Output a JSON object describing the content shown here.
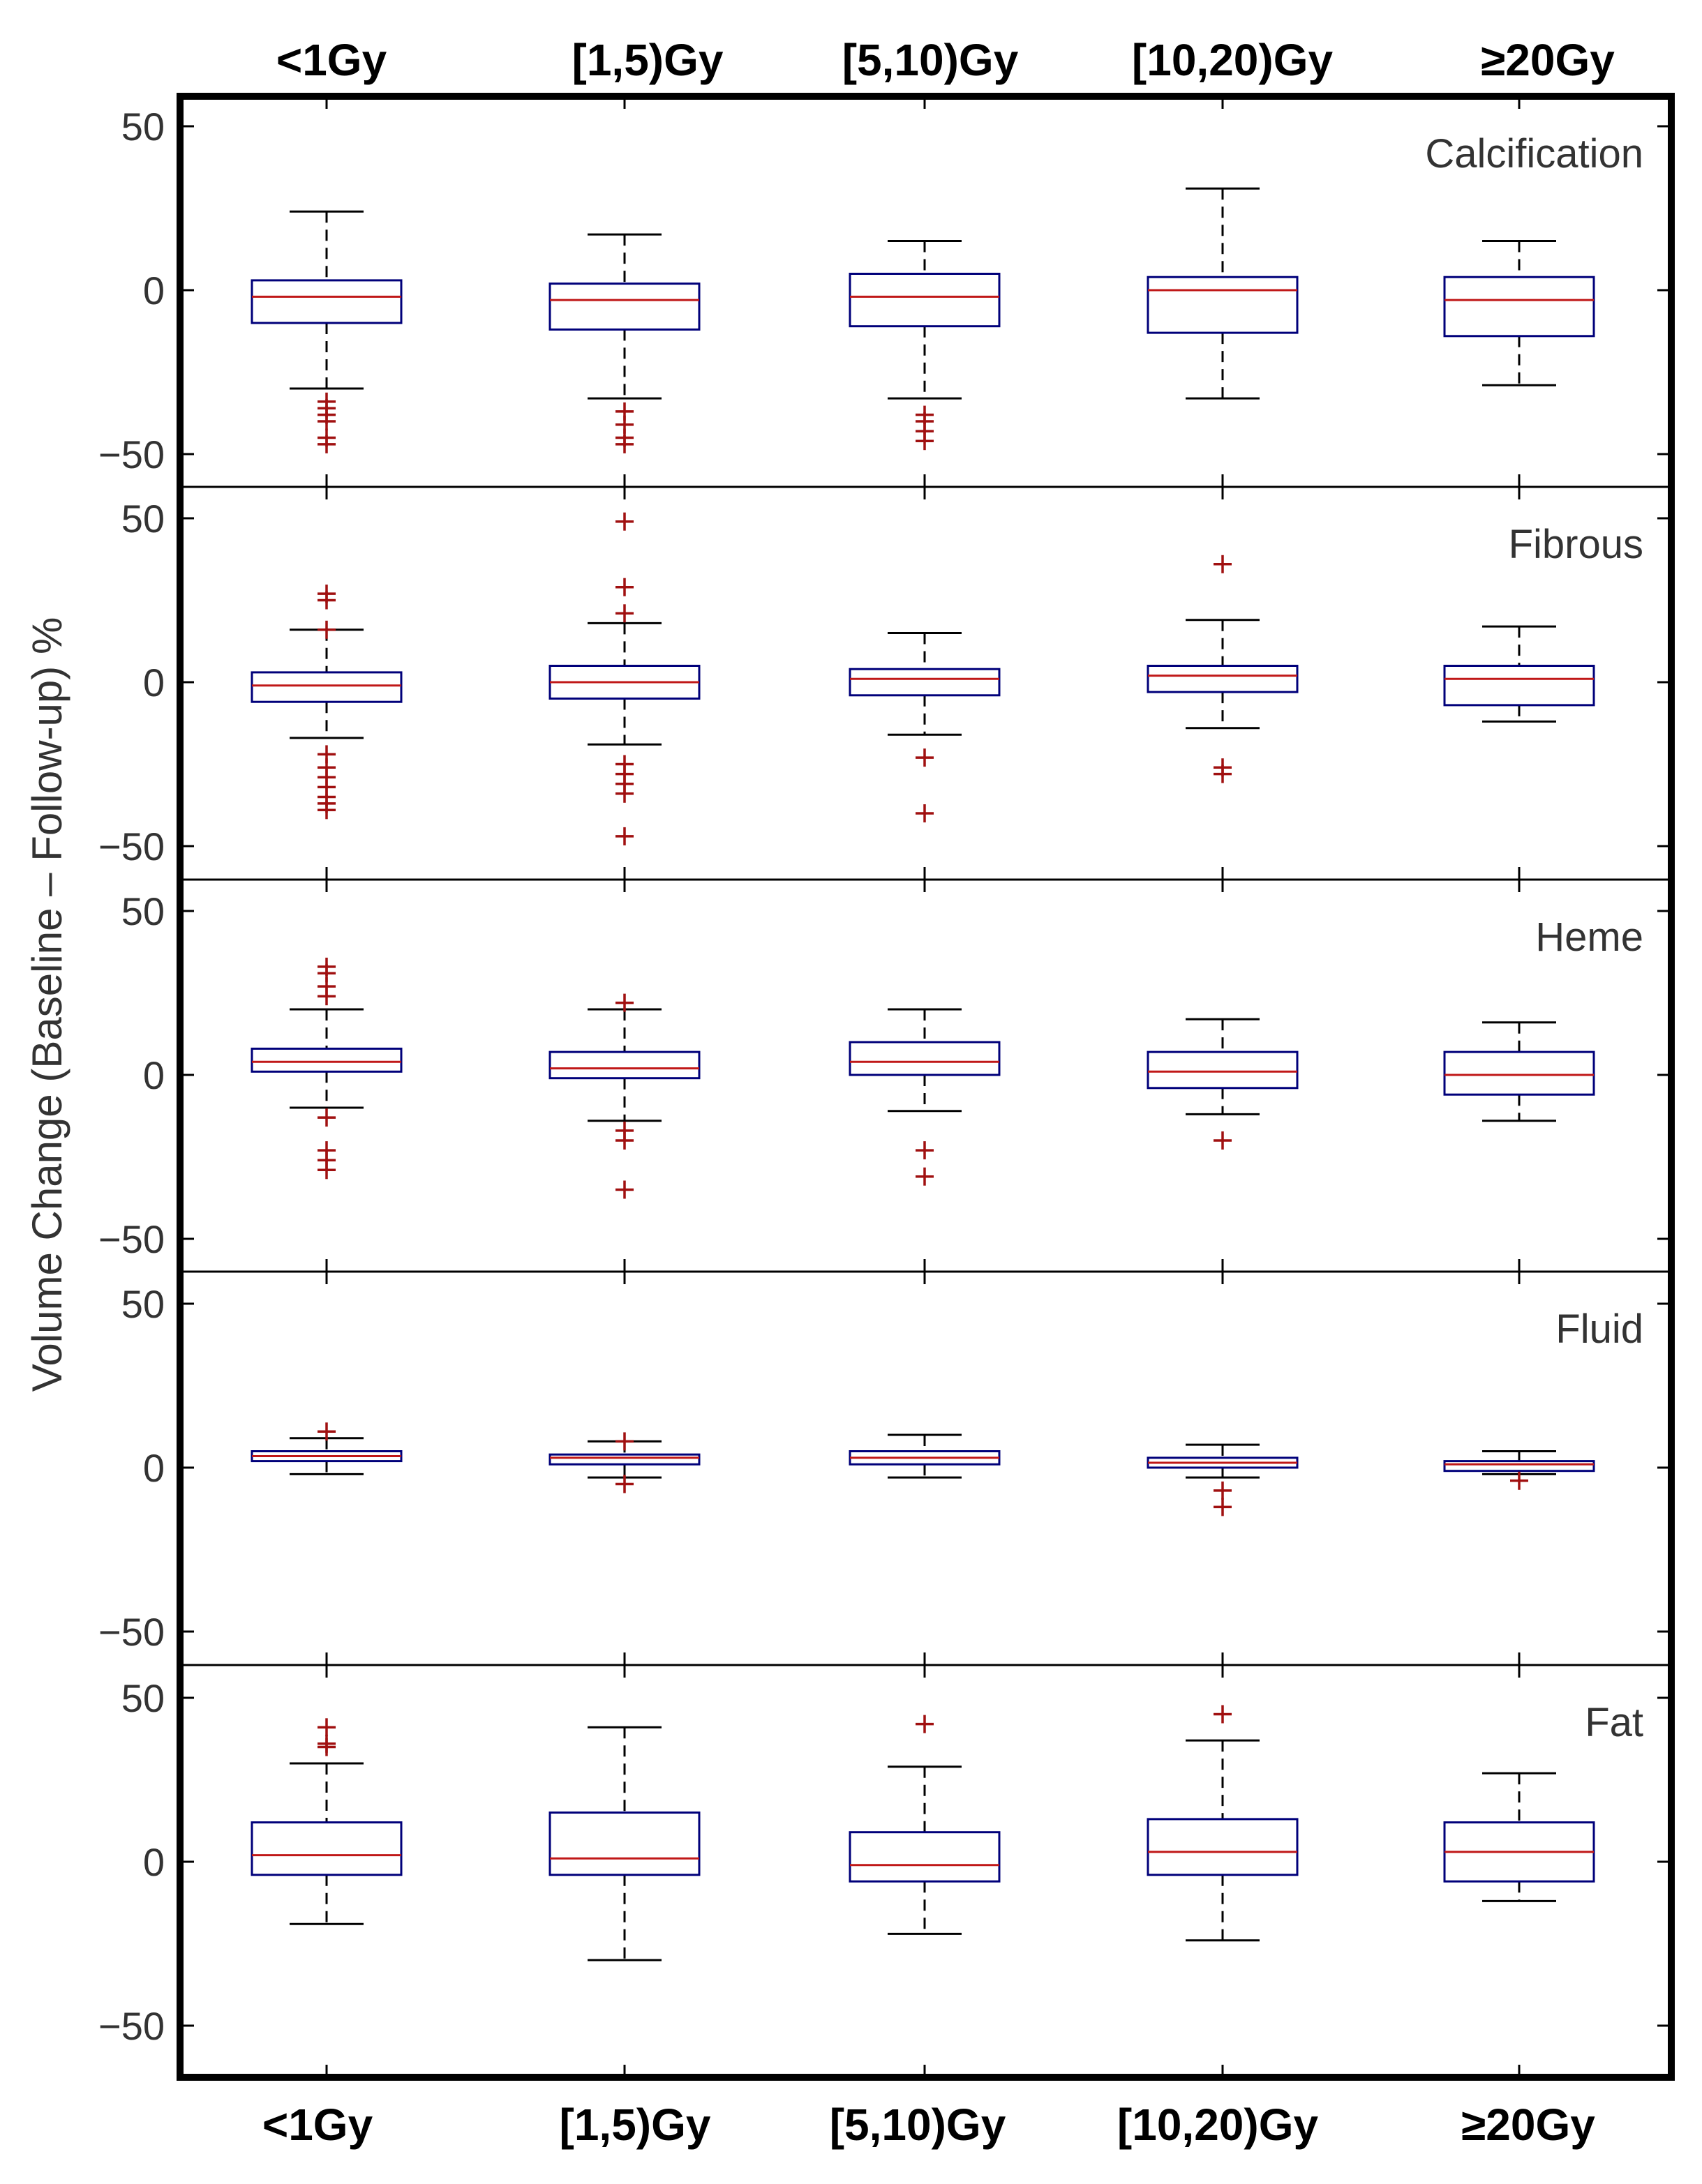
{
  "chart_data": {
    "type": "boxplot",
    "y_label": "Volume Change (Baseline – Follow-up) %",
    "categories": [
      "<1Gy",
      "[1,5)Gy",
      "[5,10)Gy",
      "[10,20)Gy",
      "≥20Gy"
    ],
    "y_range": [
      -60,
      60
    ],
    "y_ticks": [
      -50,
      0,
      50
    ],
    "y_tick_labels": [
      "−50",
      "0",
      "50"
    ],
    "panels": [
      {
        "title": "Calcification",
        "boxes": [
          {
            "q1": -10,
            "median": -2,
            "q3": 3,
            "whisker_low": -30,
            "whisker_high": 24,
            "outliers": [
              -34,
              -36,
              -38,
              -40,
              -45,
              -47
            ]
          },
          {
            "q1": -12,
            "median": -3,
            "q3": 2,
            "whisker_low": -33,
            "whisker_high": 17,
            "outliers": [
              -37,
              -41,
              -45,
              -47
            ]
          },
          {
            "q1": -11,
            "median": -2,
            "q3": 5,
            "whisker_low": -33,
            "whisker_high": 15,
            "outliers": [
              -38,
              -40,
              -43,
              -46
            ]
          },
          {
            "q1": -13,
            "median": 0,
            "q3": 4,
            "whisker_low": -33,
            "whisker_high": 31,
            "outliers": []
          },
          {
            "q1": -14,
            "median": -3,
            "q3": 4,
            "whisker_low": -29,
            "whisker_high": 15,
            "outliers": []
          }
        ]
      },
      {
        "title": "Fibrous",
        "boxes": [
          {
            "q1": -6,
            "median": -1,
            "q3": 3,
            "whisker_low": -17,
            "whisker_high": 16,
            "outliers": [
              -22,
              -26,
              -29,
              -32,
              -35,
              -37,
              -39,
              16,
              25,
              27
            ]
          },
          {
            "q1": -5,
            "median": 0,
            "q3": 5,
            "whisker_low": -19,
            "whisker_high": 18,
            "outliers": [
              -25,
              -28,
              -31,
              -34,
              -47,
              21,
              29,
              49
            ]
          },
          {
            "q1": -4,
            "median": 1,
            "q3": 4,
            "whisker_low": -16,
            "whisker_high": 15,
            "outliers": [
              -23,
              -40
            ]
          },
          {
            "q1": -3,
            "median": 2,
            "q3": 5,
            "whisker_low": -14,
            "whisker_high": 19,
            "outliers": [
              -26,
              -28,
              36
            ]
          },
          {
            "q1": -7,
            "median": 1,
            "q3": 5,
            "whisker_low": -12,
            "whisker_high": 17,
            "outliers": []
          }
        ]
      },
      {
        "title": "Heme",
        "boxes": [
          {
            "q1": 1,
            "median": 4,
            "q3": 8,
            "whisker_low": -10,
            "whisker_high": 20,
            "outliers": [
              -13,
              -23,
              -26,
              -29,
              24,
              27,
              31,
              33
            ]
          },
          {
            "q1": -1,
            "median": 2,
            "q3": 7,
            "whisker_low": -14,
            "whisker_high": 20,
            "outliers": [
              -17,
              -20,
              -35,
              22
            ]
          },
          {
            "q1": 0,
            "median": 4,
            "q3": 10,
            "whisker_low": -11,
            "whisker_high": 20,
            "outliers": [
              -23,
              -31
            ]
          },
          {
            "q1": -4,
            "median": 1,
            "q3": 7,
            "whisker_low": -12,
            "whisker_high": 17,
            "outliers": [
              -20
            ]
          },
          {
            "q1": -6,
            "median": 0,
            "q3": 7,
            "whisker_low": -14,
            "whisker_high": 16,
            "outliers": []
          }
        ]
      },
      {
        "title": "Fluid",
        "boxes": [
          {
            "q1": 2,
            "median": 3.5,
            "q3": 5,
            "whisker_low": -2,
            "whisker_high": 9,
            "outliers": [
              11
            ]
          },
          {
            "q1": 1,
            "median": 3,
            "q3": 4,
            "whisker_low": -3,
            "whisker_high": 8,
            "outliers": [
              -5,
              8
            ]
          },
          {
            "q1": 1,
            "median": 3,
            "q3": 5,
            "whisker_low": -3,
            "whisker_high": 10,
            "outliers": []
          },
          {
            "q1": 0,
            "median": 1.5,
            "q3": 3,
            "whisker_low": -3,
            "whisker_high": 7,
            "outliers": [
              -7,
              -12
            ]
          },
          {
            "q1": -1,
            "median": 1,
            "q3": 2,
            "whisker_low": -2,
            "whisker_high": 5,
            "outliers": [
              -4
            ]
          }
        ]
      },
      {
        "title": "Fat",
        "boxes": [
          {
            "q1": -4,
            "median": 2,
            "q3": 12,
            "whisker_low": -19,
            "whisker_high": 30,
            "outliers": [
              35,
              36,
              41
            ]
          },
          {
            "q1": -4,
            "median": 1,
            "q3": 15,
            "whisker_low": -30,
            "whisker_high": 41,
            "outliers": []
          },
          {
            "q1": -6,
            "median": -1,
            "q3": 9,
            "whisker_low": -22,
            "whisker_high": 29,
            "outliers": [
              42
            ]
          },
          {
            "q1": -4,
            "median": 3,
            "q3": 13,
            "whisker_low": -24,
            "whisker_high": 37,
            "outliers": [
              45
            ]
          },
          {
            "q1": -6,
            "median": 3,
            "q3": 12,
            "whisker_low": -12,
            "whisker_high": 27,
            "outliers": []
          }
        ]
      }
    ]
  }
}
